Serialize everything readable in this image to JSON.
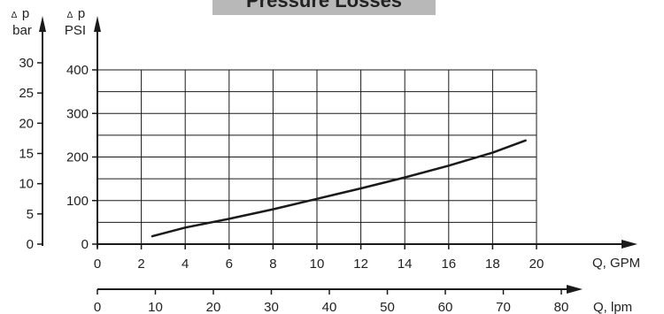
{
  "chart_data": {
    "type": "line",
    "title": "Pressure Losses",
    "colors": {
      "title_band": "#b8b8b8",
      "line": "#1a1a1a",
      "grid": "#1a1a1a",
      "text": "#222222"
    },
    "axes": {
      "y_bar": {
        "delta_symbol": "Δ",
        "label_p": "p",
        "unit": "bar",
        "ticks": [
          0,
          5,
          10,
          15,
          20,
          25,
          30
        ],
        "tick_labels": [
          "0",
          "5",
          "10",
          "15",
          "20",
          "25",
          "30"
        ],
        "range": [
          0,
          30
        ]
      },
      "y_psi": {
        "delta_symbol": "Δ",
        "label_p": "p",
        "unit": "PSI",
        "ticks": [
          0,
          100,
          200,
          300,
          400
        ],
        "tick_labels": [
          "0",
          "100",
          "200",
          "300",
          "400"
        ],
        "range": [
          0,
          400
        ]
      },
      "x_gpm": {
        "label": "Q, GPM",
        "ticks": [
          0,
          2,
          4,
          6,
          8,
          10,
          12,
          14,
          16,
          18,
          20
        ],
        "tick_labels": [
          "0",
          "2",
          "4",
          "6",
          "8",
          "10",
          "12",
          "14",
          "16",
          "18",
          "20"
        ],
        "range": [
          0,
          20
        ]
      },
      "x_lpm": {
        "label": "Q, lpm",
        "ticks": [
          0,
          10,
          20,
          30,
          40,
          50,
          60,
          70,
          80
        ],
        "tick_labels": [
          "0",
          "10",
          "20",
          "30",
          "40",
          "50",
          "60",
          "70",
          "80"
        ],
        "range": [
          0,
          80
        ]
      }
    },
    "grid": true,
    "series": [
      {
        "x": [
          2.5,
          4,
          6,
          8,
          10,
          12,
          14,
          16,
          18,
          19.5
        ],
        "y": [
          18,
          38,
          58,
          80,
          104,
          128,
          153,
          180,
          210,
          238
        ],
        "x_unit": "GPM",
        "y_unit": "PSI"
      }
    ]
  }
}
